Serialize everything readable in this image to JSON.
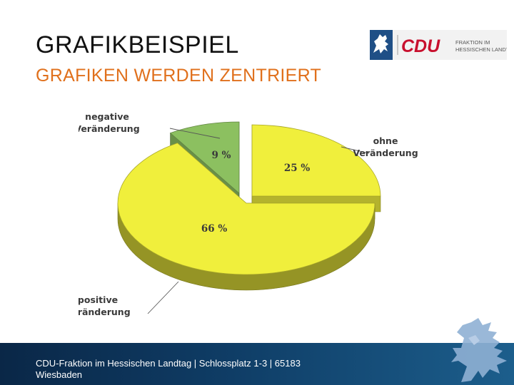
{
  "slide": {
    "title": "GRAFIKBEISPIEL",
    "subtitle": "GRAFIKEN WERDEN ZENTRIERT"
  },
  "logo": {
    "brand_text": "CDU",
    "line1": "FRAKTION IM",
    "line2": "HESSISCHEN LANDTAG"
  },
  "footer": {
    "text": "CDU-Fraktion im Hessischen Landtag | Schlossplatz 1-3 | 65183 Wiesbaden",
    "decoration_icon": "hessian-lion-icon"
  },
  "colors": {
    "accent": "#e0701c",
    "footer_dark": "#0a2747",
    "footer_light": "#1c5e8c",
    "cdu_red": "#c8102e",
    "pie_yellow": "#f0ef3c",
    "pie_green": "#8cc060"
  },
  "chart_data": {
    "type": "pie",
    "style": "3d",
    "title": "",
    "slices": [
      {
        "label_lines": [
          "ohne",
          "Veränderung"
        ],
        "value": 25,
        "value_label": "25 %",
        "color": "#f0ef3c"
      },
      {
        "label_lines": [
          "positive",
          "Veränderung"
        ],
        "value": 66,
        "value_label": "66 %",
        "color": "#f0ef3c"
      },
      {
        "label_lines": [
          "negative",
          "Veränderung"
        ],
        "value": 9,
        "value_label": "9 %",
        "color": "#8cc060"
      }
    ]
  }
}
